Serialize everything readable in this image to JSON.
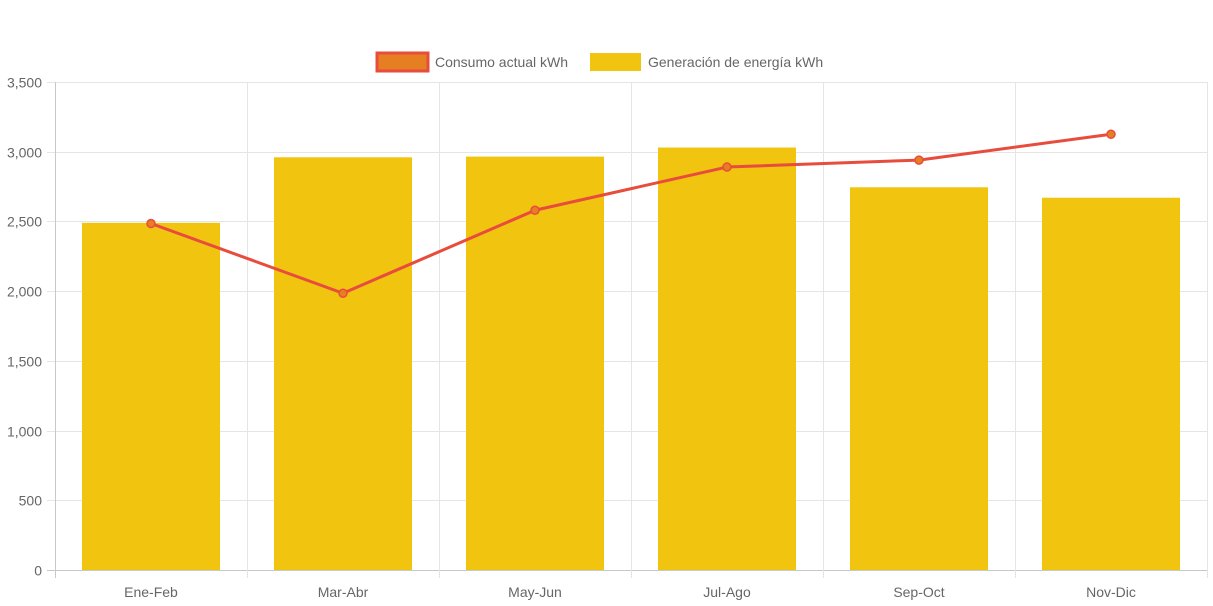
{
  "chart_data": {
    "type": "bar",
    "categories": [
      "Ene-Feb",
      "Mar-Abr",
      "May-Jun",
      "Jul-Ago",
      "Sep-Oct",
      "Nov-Dic"
    ],
    "series": [
      {
        "name": "Consumo actual kWh",
        "type": "line",
        "values": [
          2485,
          1985,
          2580,
          2890,
          2940,
          3125
        ],
        "color": "#e74c3c",
        "point_color": "#e67e22"
      },
      {
        "name": "Generación de energía kWh",
        "type": "bar",
        "values": [
          2490,
          2960,
          2965,
          3030,
          2745,
          2670
        ],
        "color": "#f1c40f"
      }
    ],
    "ylim": [
      0,
      3500
    ],
    "y_ticks": [
      "0",
      "500",
      "1,000",
      "1,500",
      "2,000",
      "2,500",
      "3,000",
      "3,500"
    ],
    "y_tick_values": [
      0,
      500,
      1000,
      1500,
      2000,
      2500,
      3000,
      3500
    ],
    "grid": true,
    "legend_position": "top-center",
    "title": "",
    "xlabel": "",
    "ylabel": ""
  }
}
